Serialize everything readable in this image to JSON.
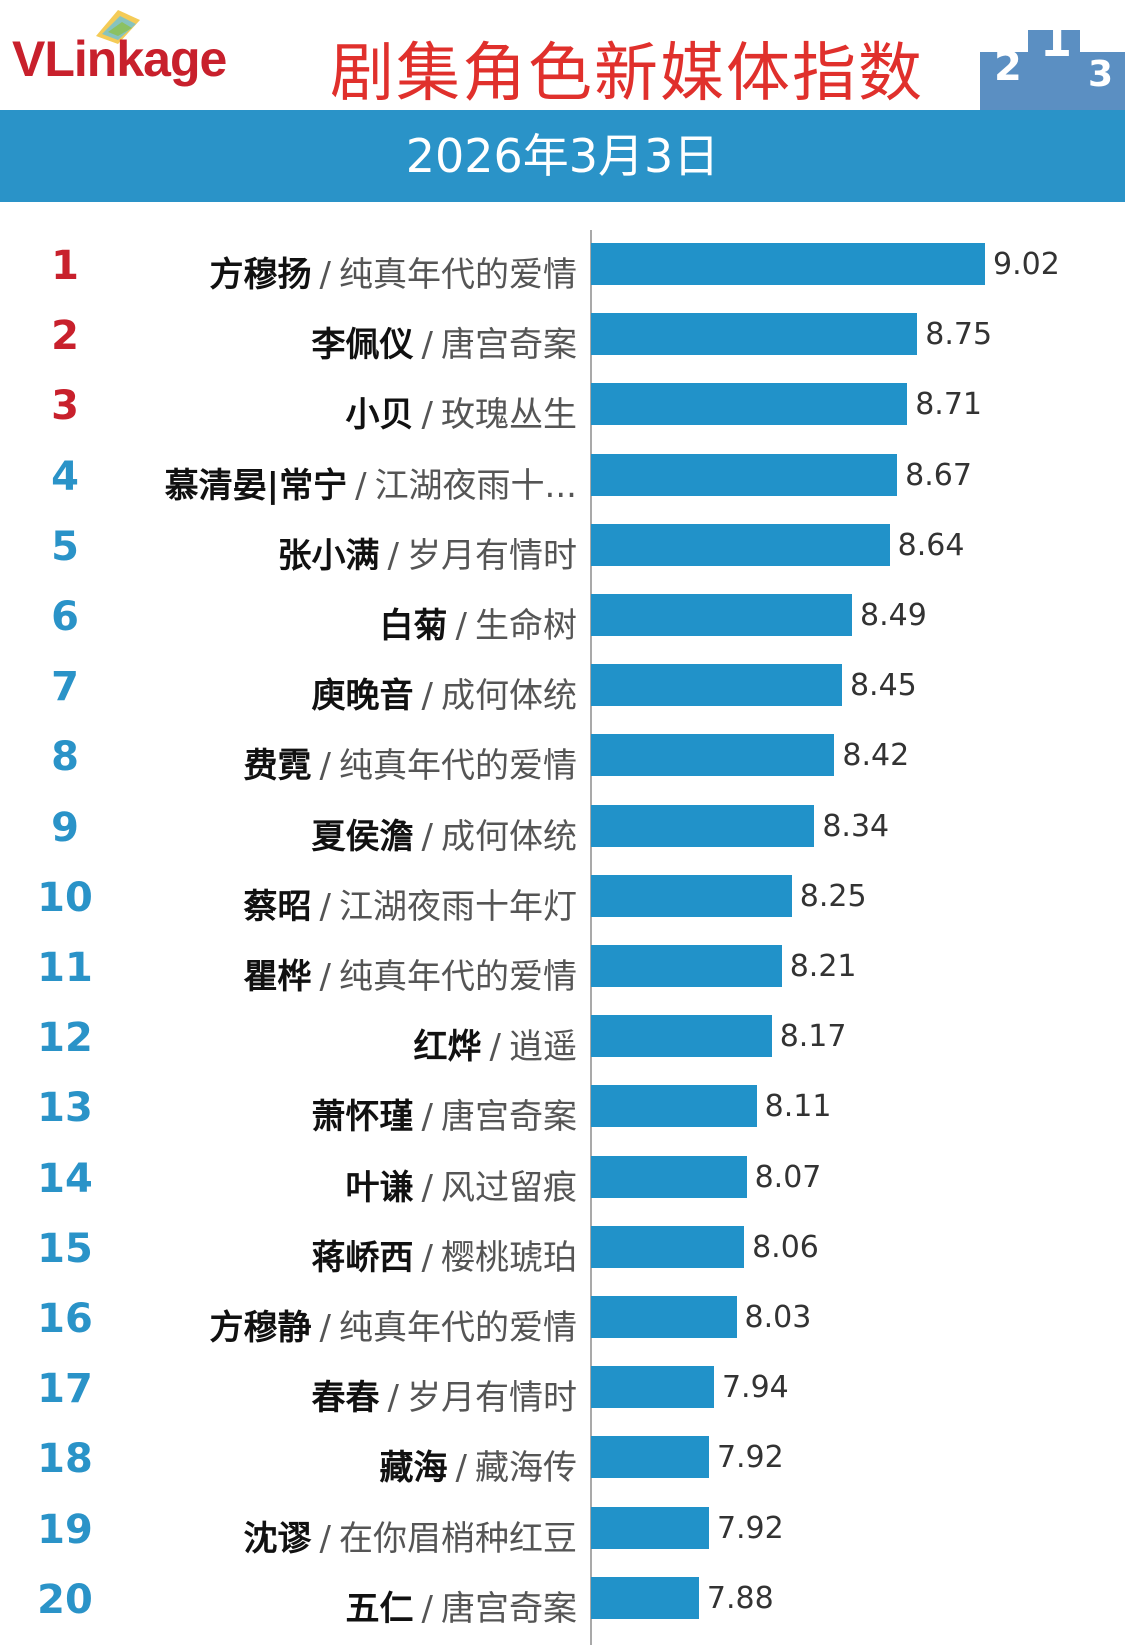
{
  "header": {
    "logo_v": "V",
    "logo_rest": "Linkage",
    "title": "剧集角色新媒体指数",
    "date": "2026年3月3日"
  },
  "colors": {
    "top3_rank": "#c8202c",
    "other_rank": "#2a93c8",
    "bar": "#2192c9",
    "header_bar": "#2a93c8"
  },
  "chart_data": {
    "type": "bar",
    "orientation": "horizontal",
    "title": "剧集角色新媒体指数",
    "subtitle": "2026年3月3日",
    "xlim": [
      7.45,
      9.02
    ],
    "ranks": [
      "1",
      "2",
      "3",
      "4",
      "5",
      "6",
      "7",
      "8",
      "9",
      "10",
      "11",
      "12",
      "13",
      "14",
      "15",
      "16",
      "17",
      "18",
      "19",
      "20"
    ],
    "names": [
      "方穆扬",
      "李佩仪",
      "小贝",
      "慕清晏|常宁",
      "张小满",
      "白菊",
      "庾晚音",
      "费霓",
      "夏侯澹",
      "蔡昭",
      "瞿桦",
      "红烨",
      "萧怀瑾",
      "叶谦",
      "蒋峤西",
      "方穆静",
      "春春",
      "藏海",
      "沈谬",
      "五仁"
    ],
    "dramas": [
      "纯真年代的爱情",
      "唐宫奇案",
      "玫瑰丛生",
      "江湖夜雨十...",
      "岁月有情时",
      "生命树",
      "成何体统",
      "纯真年代的爱情",
      "成何体统",
      "江湖夜雨十年灯",
      "纯真年代的爱情",
      "逍遥",
      "唐宫奇案",
      "风过留痕",
      "樱桃琥珀",
      "纯真年代的爱情",
      "岁月有情时",
      "藏海传",
      "在你眉梢种红豆",
      "唐宫奇案"
    ],
    "values": [
      "9.02",
      "8.75",
      "8.71",
      "8.67",
      "8.64",
      "8.49",
      "8.45",
      "8.42",
      "8.34",
      "8.25",
      "8.21",
      "8.17",
      "8.11",
      "8.07",
      "8.06",
      "8.03",
      "7.94",
      "7.92",
      "7.92",
      "7.88"
    ]
  }
}
